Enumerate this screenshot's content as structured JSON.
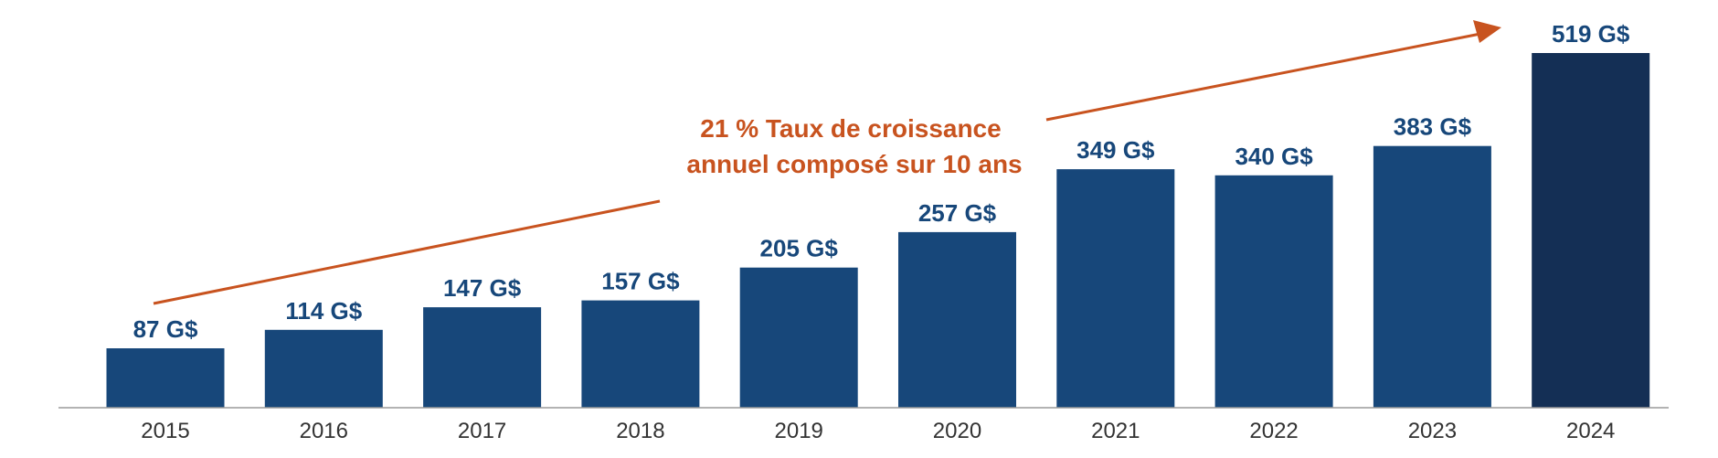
{
  "chart_data": {
    "type": "bar",
    "categories": [
      "2015",
      "2016",
      "2017",
      "2018",
      "2019",
      "2020",
      "2021",
      "2022",
      "2023",
      "2024"
    ],
    "values": [
      87,
      114,
      147,
      157,
      205,
      257,
      349,
      340,
      383,
      519
    ],
    "value_labels": [
      "87 G$",
      "114 G$",
      "147 G$",
      "157 G$",
      "205 G$",
      "257 G$",
      "349 G$",
      "340 G$",
      "383 G$",
      "519 G$"
    ],
    "title": "",
    "xlabel": "",
    "ylabel": "",
    "ylim": [
      0,
      519
    ],
    "grid": false,
    "annotation": {
      "line1": "21 % Taux de croissance",
      "line2": "annuel composé sur 10 ans"
    }
  },
  "colors": {
    "bar": "#17477A",
    "bar_highlight": "#142F55",
    "value_label": "#17477A",
    "annotation": "#C8531F",
    "axis": "#9A9A9A",
    "tick_label": "#333333"
  }
}
